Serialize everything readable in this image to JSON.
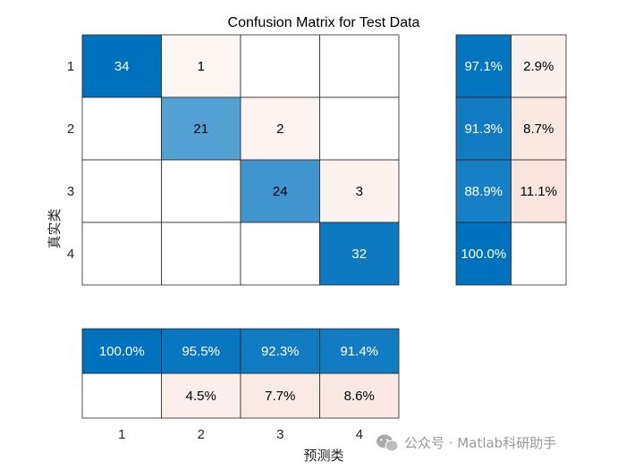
{
  "chart_data": {
    "type": "heatmap",
    "title": "Confusion Matrix for Test Data",
    "xlabel": "预测类",
    "ylabel": "真实类",
    "classes": [
      "1",
      "2",
      "3",
      "4"
    ],
    "matrix": [
      [
        34,
        1,
        null,
        null
      ],
      [
        null,
        21,
        2,
        null
      ],
      [
        null,
        null,
        24,
        3
      ],
      [
        null,
        null,
        null,
        32
      ]
    ],
    "row_summary": {
      "correct": [
        "97.1%",
        "91.3%",
        "88.9%",
        "100.0%"
      ],
      "incorrect": [
        "2.9%",
        "8.7%",
        "11.1%",
        ""
      ]
    },
    "column_summary": {
      "correct": [
        "100.0%",
        "95.5%",
        "92.3%",
        "91.4%"
      ],
      "incorrect": [
        "",
        "4.5%",
        "7.7%",
        "8.6%"
      ]
    },
    "colors": {
      "correct_max": "#0072BD",
      "incorrect_max": "#D95319",
      "grid": "#262626"
    }
  },
  "watermark": "公众号 · Matlab科研助手"
}
